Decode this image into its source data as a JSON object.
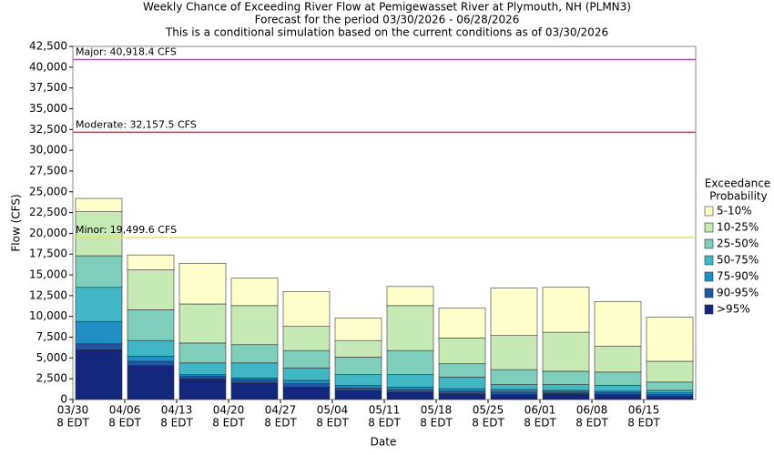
{
  "chart_data": {
    "type": "stacked-bar",
    "title": "Weekly Chance of Exceeding River Flow at Pemigewasset River at Plymouth, NH (PLMN3)",
    "subtitle_lines": [
      "Forecast for the period 03/30/2026 - 06/28/2026",
      "This is a conditional simulation based on the current conditions as of 03/30/2026"
    ],
    "y_label": "Flow (CFS)",
    "x_label": "Date",
    "categories": [
      "03/30",
      "04/06",
      "04/13",
      "04/20",
      "04/27",
      "05/04",
      "05/11",
      "05/18",
      "05/25",
      "06/01",
      "06/08",
      "06/15"
    ],
    "category_sublabels": [
      "8 EDT",
      "8 EDT",
      "8 EDT",
      "8 EDT",
      "8 EDT",
      "8 EDT",
      "8 EDT",
      "8 EDT",
      "8 EDT",
      "8 EDT",
      "8 EDT",
      "8 EDT"
    ],
    "ylim": [
      0,
      42500
    ],
    "yticks": [
      0,
      {
        "value": 2500,
        "label": "2,500"
      },
      {
        "value": 5000,
        "label": "5,000"
      },
      {
        "value": 7500,
        "label": "7,500"
      },
      {
        "value": 10000,
        "label": "10,000"
      },
      {
        "value": 12500,
        "label": "12,500"
      },
      {
        "value": 15000,
        "label": "15,000"
      },
      {
        "value": 17500,
        "label": "17,500"
      },
      {
        "value": 20000,
        "label": "20,000"
      },
      {
        "value": 22500,
        "label": "22,500"
      },
      {
        "value": 25000,
        "label": "25,000"
      },
      {
        "value": 27500,
        "label": "27,500"
      },
      {
        "value": 30000,
        "label": "30,000"
      },
      {
        "value": 32500,
        "label": "32,500"
      },
      {
        "value": 35000,
        "label": "35,000"
      },
      {
        "value": 37500,
        "label": "37,500"
      },
      {
        "value": 40000,
        "label": "40,000"
      },
      {
        "value": 42500,
        "label": "42,500"
      }
    ],
    "legend_title": [
      "Exceedance",
      "Probability"
    ],
    "series": [
      {
        "name": ">95%",
        "color": "#13287c",
        "values": [
          6000,
          4100,
          2500,
          2000,
          1500,
          1100,
          900,
          700,
          600,
          700,
          600,
          400
        ]
      },
      {
        "name": "90-95%",
        "color": "#2255a4",
        "values": [
          700,
          500,
          300,
          400,
          400,
          300,
          300,
          300,
          300,
          200,
          200,
          200
        ]
      },
      {
        "name": "75-90%",
        "color": "#1f8fc4",
        "values": [
          2700,
          600,
          200,
          200,
          400,
          300,
          300,
          300,
          300,
          200,
          200,
          200
        ]
      },
      {
        "name": "50-75%",
        "color": "#41b6c4",
        "values": [
          4100,
          1900,
          1400,
          1800,
          1500,
          1300,
          1500,
          1400,
          600,
          700,
          700,
          300
        ]
      },
      {
        "name": "25-50%",
        "color": "#7fcdbb",
        "values": [
          3800,
          3700,
          2400,
          2200,
          2100,
          2100,
          2900,
          1600,
          1800,
          1600,
          1600,
          1000
        ]
      },
      {
        "name": "10-25%",
        "color": "#c7e9b4",
        "values": [
          5300,
          4800,
          4700,
          4700,
          2900,
          2000,
          5400,
          3100,
          4100,
          4700,
          3100,
          2500
        ]
      },
      {
        "name": "5-10%",
        "color": "#ffffcc",
        "values": [
          1600,
          1800,
          4900,
          3300,
          4200,
          2700,
          2300,
          3600,
          5700,
          5400,
          5400,
          5300
        ]
      }
    ],
    "thresholds": [
      {
        "label": "Major: 40,918.4 CFS",
        "value": 40918.4,
        "color": "#cc33cc"
      },
      {
        "label": "Moderate: 32,157.5 CFS",
        "value": 32157.5,
        "color": "#e0304a"
      },
      {
        "label": "Minor: 19,499.6 CFS",
        "value": 19499.6,
        "color": "#e6e070"
      }
    ]
  }
}
